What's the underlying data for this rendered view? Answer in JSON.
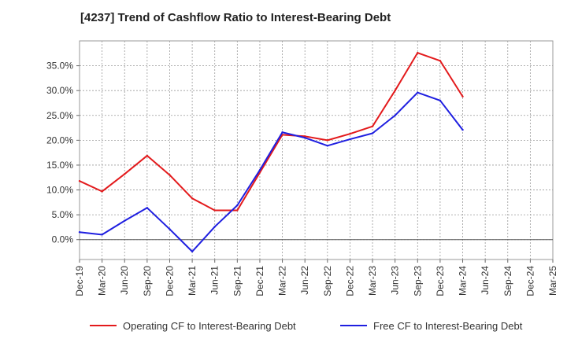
{
  "chart_data": {
    "type": "line",
    "title": "[4237]  Trend of Cashflow Ratio to Interest-Bearing Debt",
    "categories": [
      "Dec-19",
      "Mar-20",
      "Jun-20",
      "Sep-20",
      "Dec-20",
      "Mar-21",
      "Jun-21",
      "Sep-21",
      "Dec-21",
      "Mar-22",
      "Jun-22",
      "Sep-22",
      "Dec-22",
      "Mar-23",
      "Jun-23",
      "Sep-23",
      "Dec-23",
      "Mar-24",
      "Jun-24",
      "Sep-24",
      "Dec-24",
      "Mar-25"
    ],
    "yticks": [
      "0.0%",
      "5.0%",
      "10.0%",
      "15.0%",
      "20.0%",
      "25.0%",
      "30.0%",
      "35.0%"
    ],
    "ylim": [
      -4,
      40
    ],
    "grid": true,
    "legend_position": "bottom",
    "series": [
      {
        "name": "Operating CF to Interest-Bearing Debt",
        "color": "#e31a1c",
        "values": [
          11.8,
          9.7,
          13.2,
          16.9,
          13.0,
          8.3,
          5.9,
          5.9,
          13.5,
          21.1,
          20.8,
          20.0,
          21.3,
          22.8,
          30.0,
          37.6,
          36.0,
          28.8,
          null,
          null,
          null,
          null
        ]
      },
      {
        "name": "Free CF to Interest-Bearing Debt",
        "color": "#1f1fe0",
        "values": [
          1.5,
          1.0,
          3.8,
          6.4,
          2.1,
          -2.4,
          2.6,
          6.9,
          14.0,
          21.6,
          20.5,
          18.9,
          20.2,
          21.4,
          25.0,
          29.6,
          28.0,
          22.1,
          null,
          null,
          null,
          null
        ]
      }
    ]
  }
}
